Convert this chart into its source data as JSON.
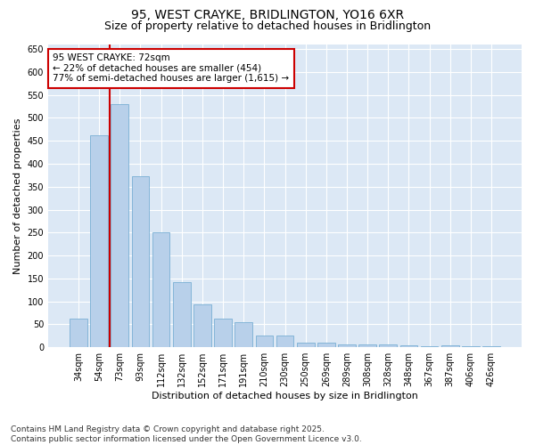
{
  "title": "95, WEST CRAYKE, BRIDLINGTON, YO16 6XR",
  "subtitle": "Size of property relative to detached houses in Bridlington",
  "xlabel": "Distribution of detached houses by size in Bridlington",
  "ylabel": "Number of detached properties",
  "categories": [
    "34sqm",
    "54sqm",
    "73sqm",
    "93sqm",
    "112sqm",
    "132sqm",
    "152sqm",
    "171sqm",
    "191sqm",
    "210sqm",
    "230sqm",
    "250sqm",
    "269sqm",
    "289sqm",
    "308sqm",
    "328sqm",
    "348sqm",
    "367sqm",
    "387sqm",
    "406sqm",
    "426sqm"
  ],
  "values": [
    62,
    462,
    530,
    372,
    250,
    142,
    93,
    62,
    55,
    25,
    25,
    10,
    10,
    7,
    7,
    7,
    5,
    3,
    5,
    3,
    3
  ],
  "bar_color": "#b8d0ea",
  "bar_edge_color": "#7aafd4",
  "vline_color": "#cc0000",
  "annotation_text": "95 WEST CRAYKE: 72sqm\n← 22% of detached houses are smaller (454)\n77% of semi-detached houses are larger (1,615) →",
  "annotation_box_color": "#ffffff",
  "annotation_box_edge_color": "#cc0000",
  "ylim": [
    0,
    660
  ],
  "yticks": [
    0,
    50,
    100,
    150,
    200,
    250,
    300,
    350,
    400,
    450,
    500,
    550,
    600,
    650
  ],
  "background_color": "#dce8f5",
  "footer_line1": "Contains HM Land Registry data © Crown copyright and database right 2025.",
  "footer_line2": "Contains public sector information licensed under the Open Government Licence v3.0.",
  "title_fontsize": 10,
  "subtitle_fontsize": 9,
  "axis_label_fontsize": 8,
  "tick_fontsize": 7,
  "annotation_fontsize": 7.5,
  "footer_fontsize": 6.5
}
